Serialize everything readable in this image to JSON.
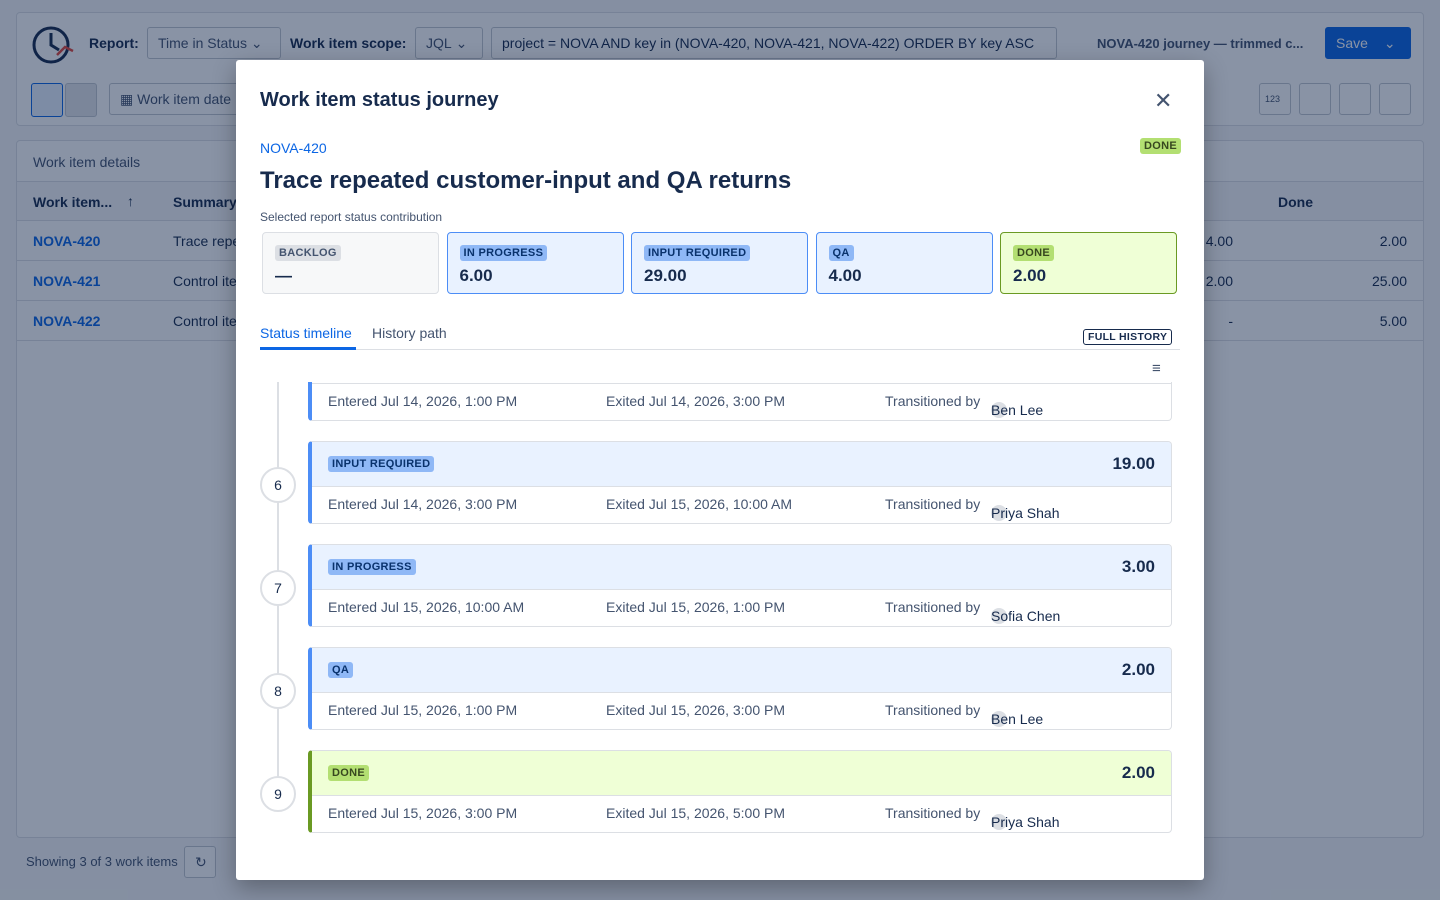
{
  "toolbar": {
    "report_label": "Report:",
    "report_value": "Time in Status",
    "scope_label": "Work item scope:",
    "scope_value": "JQL",
    "query": "project = NOVA AND key in (NOVA-420, NOVA-421, NOVA-422) ORDER BY key ASC",
    "view_name": "NOVA-420 journey — trimmed c...",
    "save": "Save",
    "date_filter": "Work item date",
    "icon_number": "123"
  },
  "table": {
    "title": "Work item details",
    "columns": [
      "Work item...",
      "Summary",
      "Done"
    ],
    "rows": [
      {
        "key": "NOVA-420",
        "summary": "Trace repe",
        "qa": "4.00",
        "done": "2.00"
      },
      {
        "key": "NOVA-421",
        "summary": "Control ite",
        "qa": "2.00",
        "done": "25.00"
      },
      {
        "key": "NOVA-422",
        "summary": "Control ite",
        "qa": "-",
        "done": "5.00"
      }
    ],
    "footer": "Showing 3 of 3 work items"
  },
  "modal": {
    "title": "Work item status journey",
    "key": "NOVA-420",
    "status": "DONE",
    "summary": "Trace repeated customer-input and QA returns",
    "contribution_label": "Selected report status contribution",
    "contributions": [
      {
        "status": "BACKLOG",
        "value": "—"
      },
      {
        "status": "IN PROGRESS",
        "value": "6.00"
      },
      {
        "status": "INPUT REQUIRED",
        "value": "29.00"
      },
      {
        "status": "QA",
        "value": "4.00"
      },
      {
        "status": "DONE",
        "value": "2.00"
      }
    ],
    "tabs": [
      "Status timeline",
      "History path"
    ],
    "badge": "FULL HISTORY",
    "transitioned_label": "Transitioned by",
    "timeline": [
      {
        "entered": "Entered Jul 14, 2026, 1:00 PM",
        "exited": "Exited Jul 14, 2026, 3:00 PM",
        "by": "Ben Lee"
      },
      {
        "step": "6",
        "status": "INPUT REQUIRED",
        "duration": "19.00",
        "entered": "Entered Jul 14, 2026, 3:00 PM",
        "exited": "Exited Jul 15, 2026, 10:00 AM",
        "by": "Priya Shah"
      },
      {
        "step": "7",
        "status": "IN PROGRESS",
        "duration": "3.00",
        "entered": "Entered Jul 15, 2026, 10:00 AM",
        "exited": "Exited Jul 15, 2026, 1:00 PM",
        "by": "Sofia Chen"
      },
      {
        "step": "8",
        "status": "QA",
        "duration": "2.00",
        "entered": "Entered Jul 15, 2026, 1:00 PM",
        "exited": "Exited Jul 15, 2026, 3:00 PM",
        "by": "Ben Lee"
      },
      {
        "step": "9",
        "status": "DONE",
        "duration": "2.00",
        "entered": "Entered Jul 15, 2026, 3:00 PM",
        "exited": "Exited Jul 15, 2026, 5:00 PM",
        "by": "Priya Shah"
      }
    ]
  }
}
